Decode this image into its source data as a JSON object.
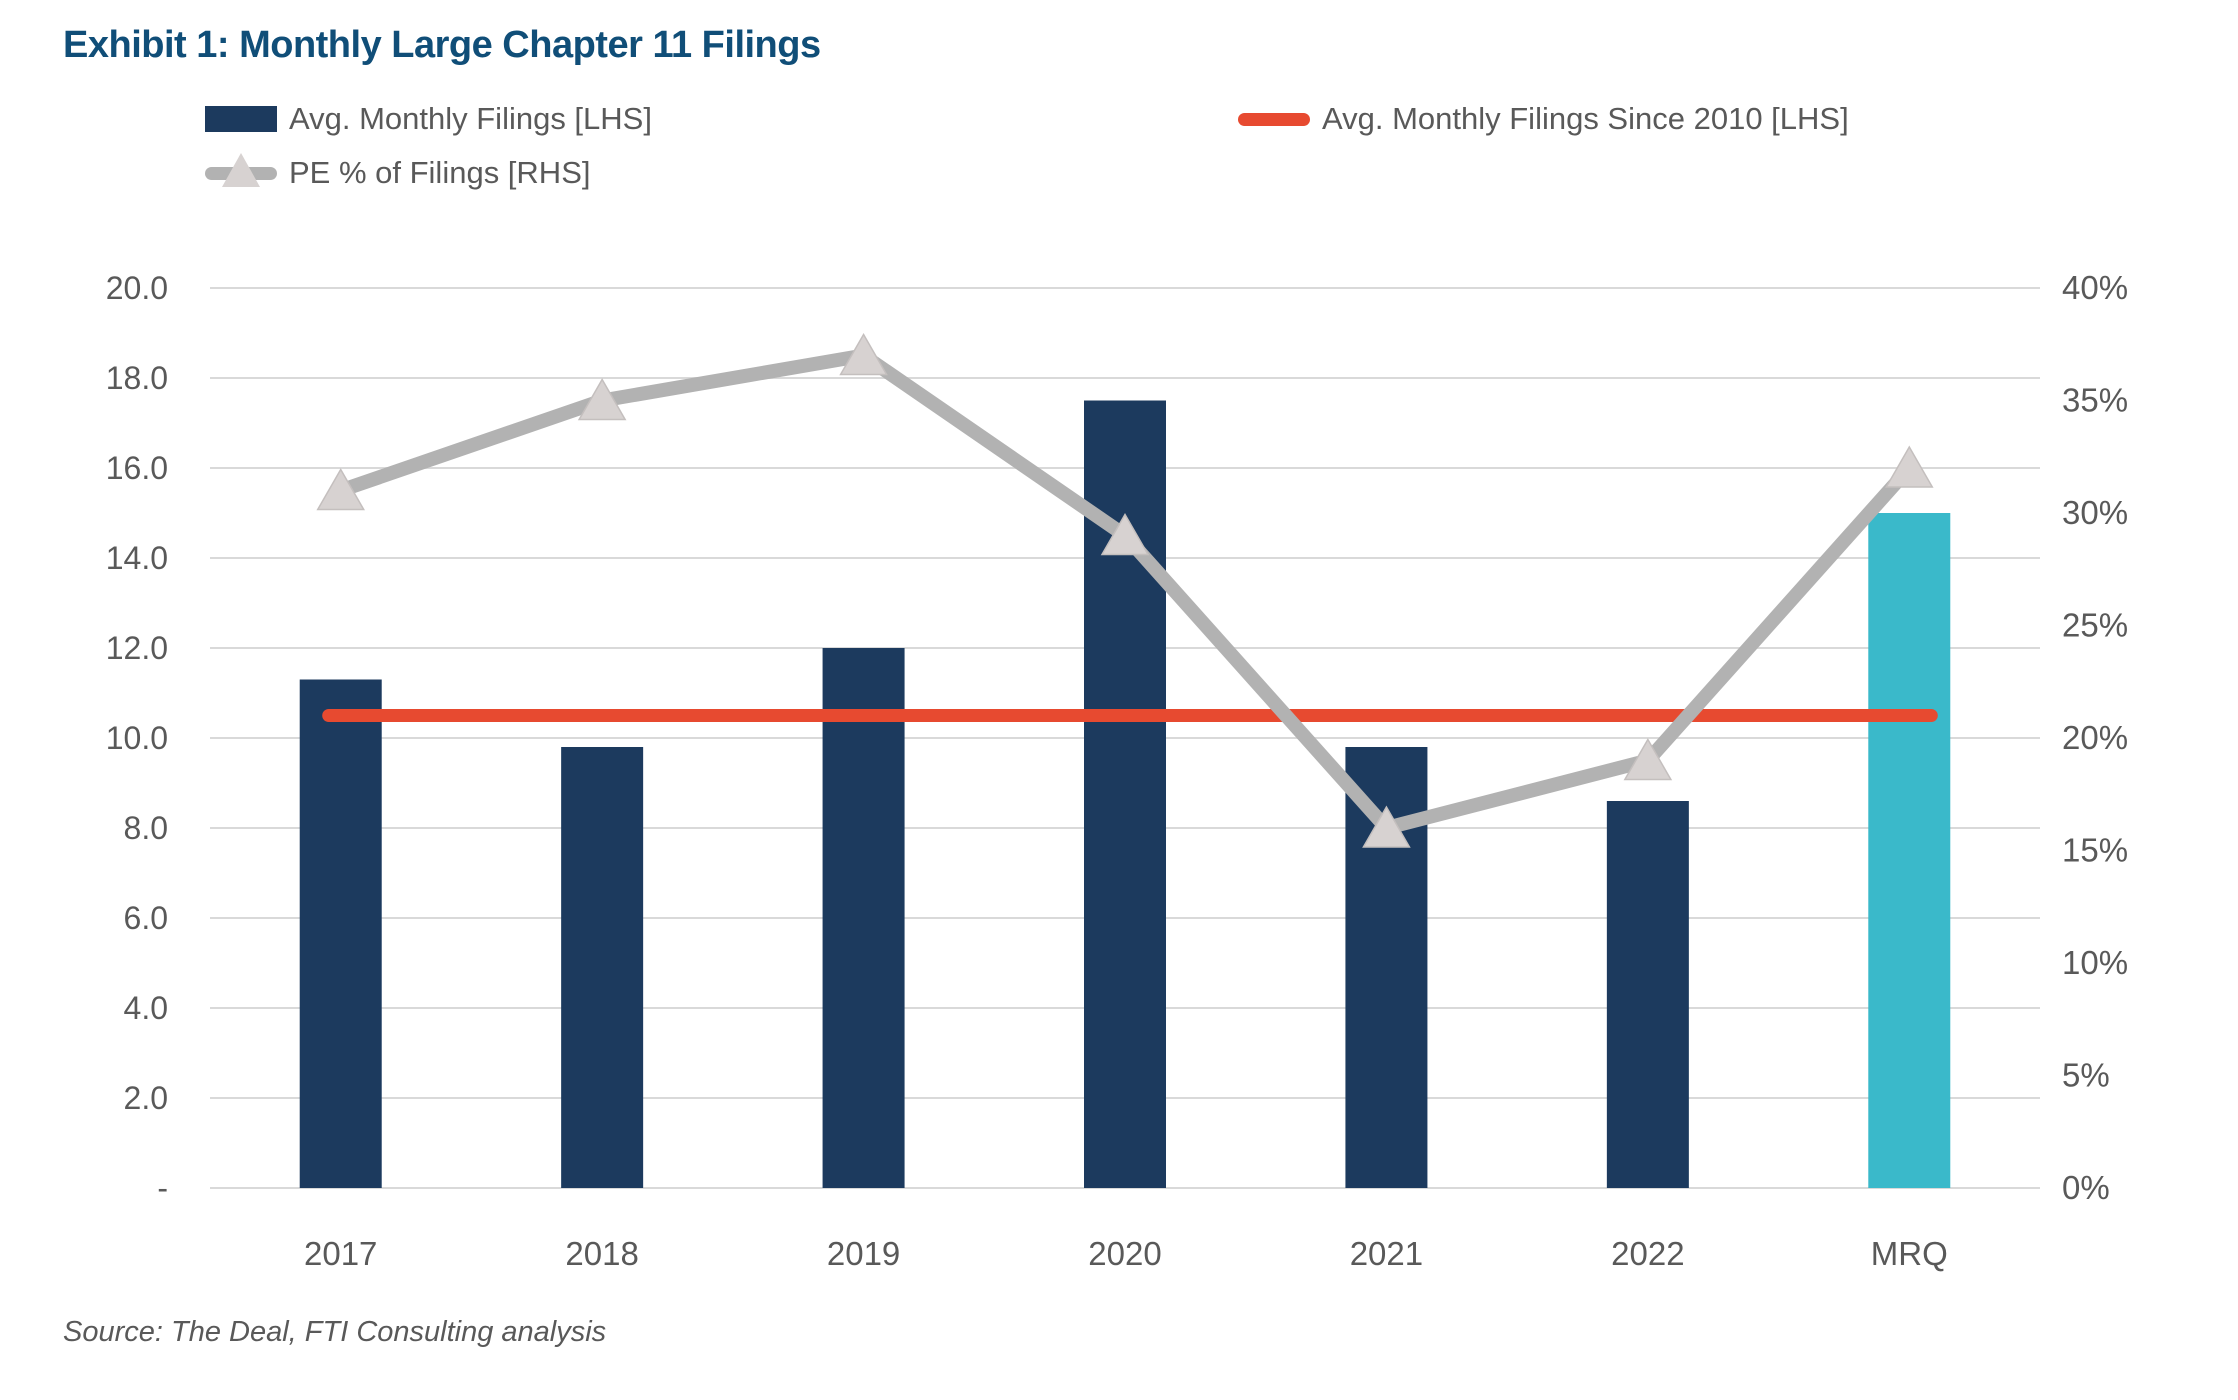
{
  "title": "Exhibit 1: Monthly Large Chapter 11 Filings",
  "source": "Source: The Deal, FTI Consulting analysis",
  "colors": {
    "title": "#104e78",
    "bar": "#1c3a5e",
    "bar_highlight": "#3ab9ca",
    "avg_line": "#e74a30",
    "pe_line": "#b2b2b2",
    "pe_marker_fill": "#d7d2d1",
    "pe_marker_stroke": "#c4bfbe",
    "gridline": "#d9d9d9",
    "axis_text": "#595959"
  },
  "legend": {
    "items": [
      {
        "label": "Avg. Monthly Filings [LHS]",
        "swatch": "bar-swatch"
      },
      {
        "label": "Avg. Monthly Filings Since 2010 [LHS]",
        "swatch": "red-line-swatch"
      },
      {
        "label": "PE % of Filings [RHS]",
        "swatch": "gray-line-triangle-swatch"
      }
    ]
  },
  "chart_data": {
    "type": "bar",
    "subtype": "combo-bar-line-dual-axis",
    "categories": [
      "2017",
      "2018",
      "2019",
      "2020",
      "2021",
      "2022",
      "MRQ"
    ],
    "series": [
      {
        "name": "Avg. Monthly Filings [LHS]",
        "type": "bar",
        "axis": "left",
        "values": [
          11.3,
          9.8,
          12.0,
          17.5,
          9.8,
          8.6,
          15.0
        ],
        "highlight_index": 6
      },
      {
        "name": "Avg. Monthly Filings Since 2010 [LHS]",
        "type": "line",
        "axis": "left",
        "constant_value": 10.5
      },
      {
        "name": "PE % of Filings [RHS]",
        "type": "line",
        "axis": "right",
        "marker": "triangle",
        "values": [
          31,
          35,
          37,
          29,
          16,
          19,
          32
        ]
      }
    ],
    "left_axis": {
      "min": 0,
      "max": 20,
      "step": 2,
      "tick_labels": [
        "-",
        "2.0",
        "4.0",
        "6.0",
        "8.0",
        "10.0",
        "12.0",
        "14.0",
        "16.0",
        "18.0",
        "20.0"
      ]
    },
    "right_axis": {
      "min": 0,
      "max": 40,
      "step": 5,
      "tick_labels": [
        "0%",
        "5%",
        "10%",
        "15%",
        "20%",
        "25%",
        "30%",
        "35%",
        "40%"
      ]
    },
    "grid": true,
    "legend_position": "top"
  }
}
